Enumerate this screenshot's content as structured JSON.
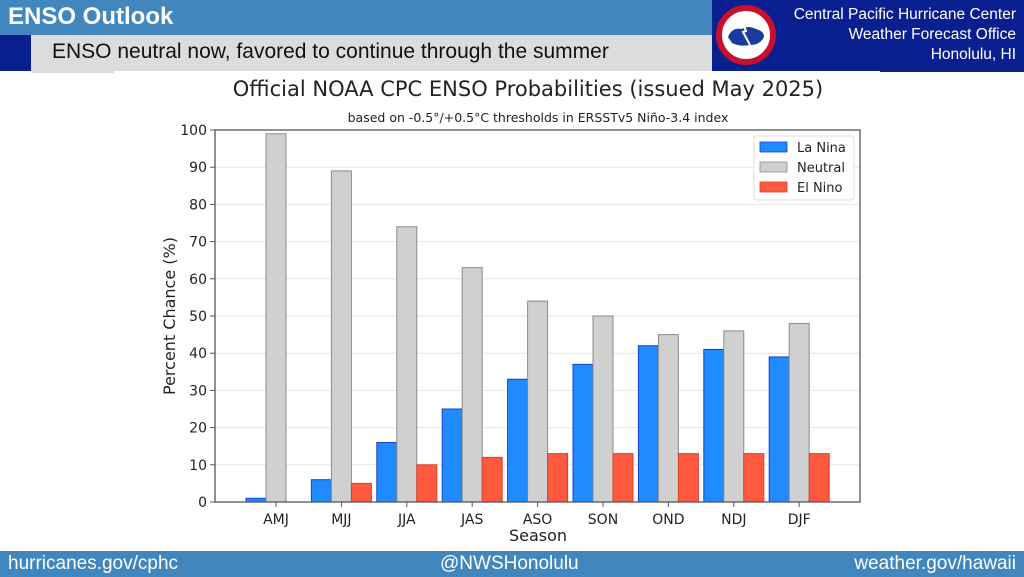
{
  "header": {
    "title": "ENSO Outlook",
    "subtitle": "ENSO neutral now, favored to continue through the summer",
    "office_lines": [
      "Central Pacific Hurricane Center",
      "Weather Forecast Office",
      "Honolulu, HI"
    ],
    "logo_icon": "nws-logo-icon"
  },
  "footer": {
    "left": "hurricanes.gov/cphc",
    "center": "@NWSHonolulu",
    "right": "weather.gov/hawaii"
  },
  "colors": {
    "header_blue": "#4186bd",
    "navy": "#0a1f8f",
    "la_nina": "#1f8bff",
    "neutral": "#d0d0d0",
    "el_nino": "#ff5a40"
  },
  "chart_data": {
    "type": "bar",
    "title": "Official NOAA CPC ENSO Probabilities (issued May 2025)",
    "subtitle": "based on -0.5°/+0.5°C thresholds in ERSSTv5 Niño-3.4 index",
    "xlabel": "Season",
    "ylabel": "Percent Chance (%)",
    "ylim": [
      0,
      100
    ],
    "yticks": [
      0,
      10,
      20,
      30,
      40,
      50,
      60,
      70,
      80,
      90,
      100
    ],
    "grid": true,
    "legend_position": "top-right",
    "categories": [
      "AMJ",
      "MJJ",
      "JJA",
      "JAS",
      "ASO",
      "SON",
      "OND",
      "NDJ",
      "DJF"
    ],
    "series": [
      {
        "name": "La Nina",
        "color": "#1f8bff",
        "values": [
          1,
          6,
          16,
          25,
          33,
          37,
          42,
          41,
          39
        ]
      },
      {
        "name": "Neutral",
        "color": "#d0d0d0",
        "values": [
          99,
          89,
          74,
          63,
          54,
          50,
          45,
          46,
          48
        ]
      },
      {
        "name": "El Nino",
        "color": "#ff5a40",
        "values": [
          0,
          5,
          10,
          12,
          13,
          13,
          13,
          13,
          13
        ]
      }
    ]
  }
}
